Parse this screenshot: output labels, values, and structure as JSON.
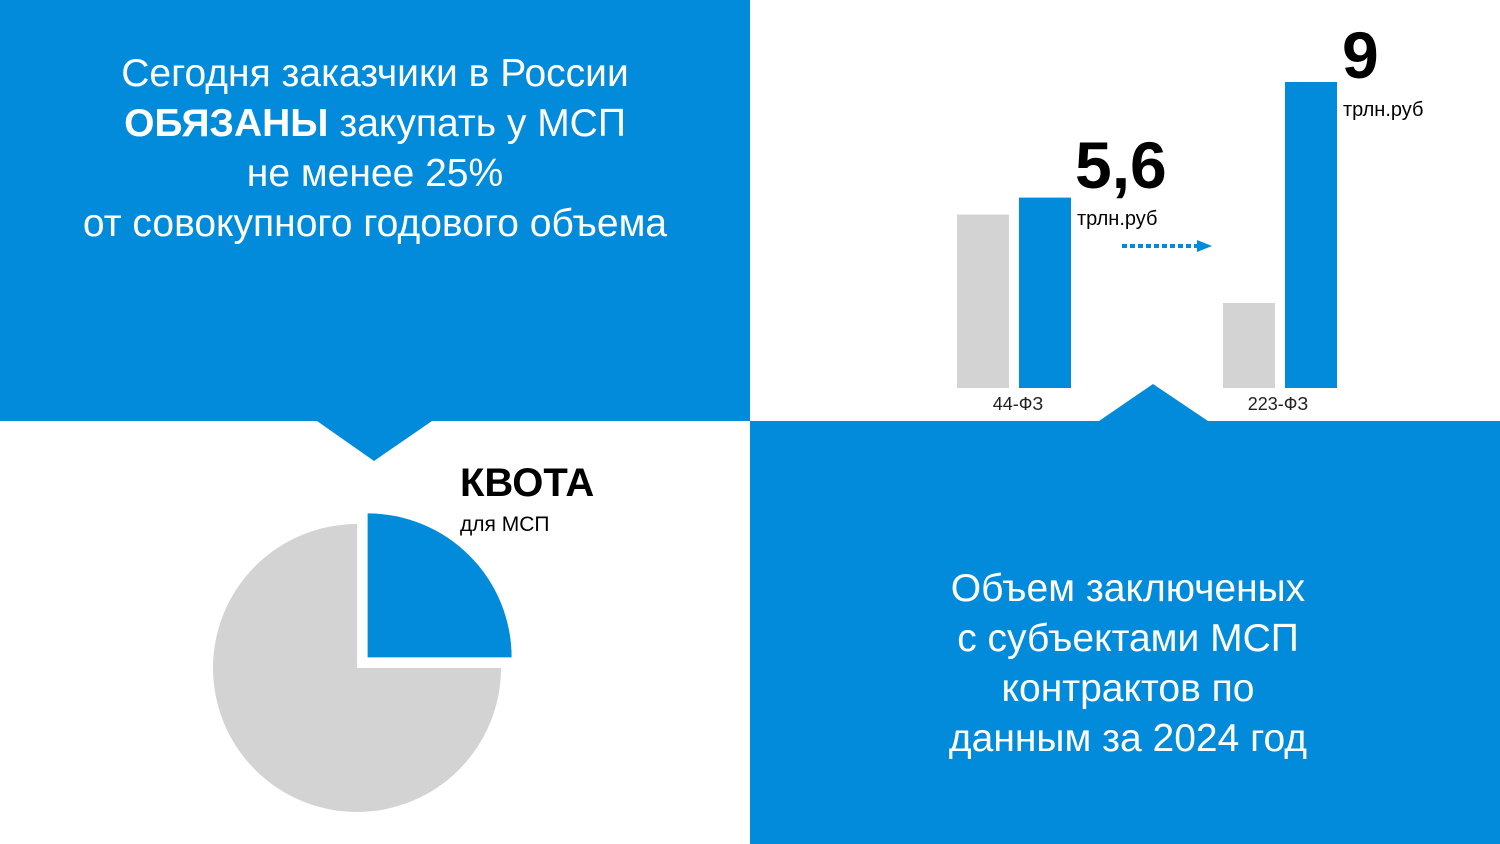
{
  "colors": {
    "accent": "#038bdb",
    "gray": "#d3d3d3",
    "text": "#000000",
    "panel_text": "#ffffff"
  },
  "top_panel": {
    "line1": "Сегодня заказчики в России",
    "line2_bold": "ОБЯЗАНЫ",
    "line2_rest": " закупать у МСП",
    "line3": "не менее 25%",
    "line4": "от совокупного годового объема"
  },
  "bottom_panel": {
    "lines": [
      "Объем заключеных",
      "с субъектами МСП",
      "контрактов по",
      "данным за 2024 год"
    ]
  },
  "chart_data": [
    {
      "type": "bar",
      "categories": [
        "44-ФЗ",
        "223-ФЗ"
      ],
      "series": [
        {
          "values": [
            5.1,
            2.5
          ],
          "color": "#d3d3d3"
        },
        {
          "values": [
            5.6,
            9
          ],
          "color": "#038bdb"
        }
      ],
      "data_labels": [
        {
          "value": "5,6",
          "unit": "трлн.руб"
        },
        {
          "value": "9",
          "unit": "трлн.руб"
        }
      ],
      "ylim": [
        0,
        9
      ],
      "grid": false,
      "arrow": "dotted-right"
    },
    {
      "type": "pie",
      "slices": [
        {
          "label": "КВОТА",
          "sublabel": "для МСП",
          "value": 25,
          "color": "#038bdb",
          "exploded": true
        },
        {
          "value": 75,
          "color": "#d3d3d3"
        }
      ]
    }
  ]
}
